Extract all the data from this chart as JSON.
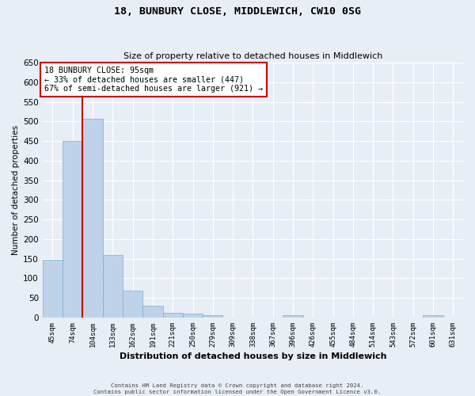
{
  "title": "18, BUNBURY CLOSE, MIDDLEWICH, CW10 0SG",
  "subtitle": "Size of property relative to detached houses in Middlewich",
  "xlabel": "Distribution of detached houses by size in Middlewich",
  "ylabel": "Number of detached properties",
  "categories": [
    "45sqm",
    "74sqm",
    "104sqm",
    "133sqm",
    "162sqm",
    "191sqm",
    "221sqm",
    "250sqm",
    "279sqm",
    "309sqm",
    "338sqm",
    "367sqm",
    "396sqm",
    "426sqm",
    "455sqm",
    "484sqm",
    "514sqm",
    "543sqm",
    "572sqm",
    "601sqm",
    "631sqm"
  ],
  "values": [
    148,
    450,
    507,
    159,
    68,
    30,
    13,
    9,
    5,
    0,
    0,
    0,
    5,
    0,
    0,
    0,
    0,
    0,
    0,
    5,
    0
  ],
  "bar_color": "#bed3e9",
  "bar_edgecolor": "#7aadd4",
  "background_color": "#e8eef6",
  "annotation_text_line1": "18 BUNBURY CLOSE: 95sqm",
  "annotation_text_line2": "← 33% of detached houses are smaller (447)",
  "annotation_text_line3": "67% of semi-detached houses are larger (921) →",
  "annotation_box_facecolor": "#ffffff",
  "annotation_box_edgecolor": "#cc0000",
  "vline_color": "#cc0000",
  "vline_x": 1.5,
  "ylim": [
    0,
    650
  ],
  "yticks": [
    0,
    50,
    100,
    150,
    200,
    250,
    300,
    350,
    400,
    450,
    500,
    550,
    600,
    650
  ],
  "footer_line1": "Contains HM Land Registry data © Crown copyright and database right 2024.",
  "footer_line2": "Contains public sector information licensed under the Open Government Licence v3.0."
}
